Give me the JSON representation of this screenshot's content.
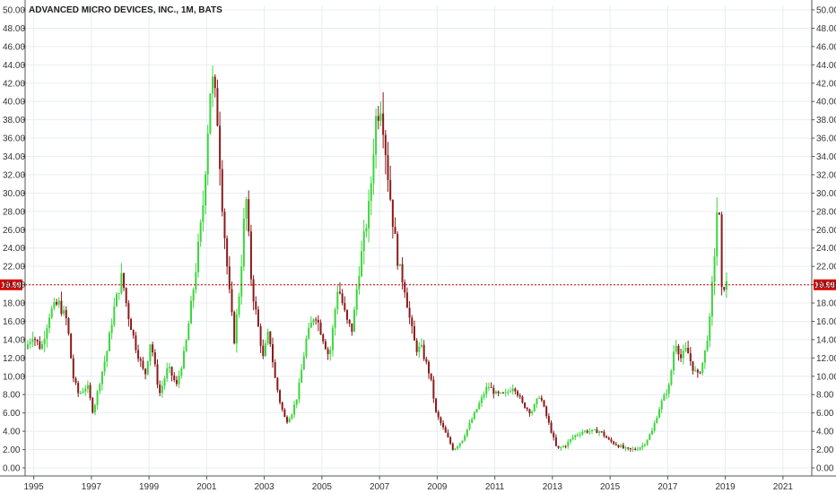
{
  "chart_data": {
    "type": "candlestick",
    "title": "ADVANCED MICRO DEVICES, INC., 1M, BATS",
    "ylim": [
      0,
      50
    ],
    "yticks": [
      0,
      2,
      4,
      6,
      8,
      10,
      12,
      14,
      16,
      18,
      20,
      22,
      24,
      26,
      28,
      30,
      32,
      34,
      36,
      38,
      40,
      42,
      44,
      46,
      48,
      50
    ],
    "ytick_labels": [
      "0.00",
      "2.00",
      "4.00",
      "6.00",
      "8.00",
      "10.00",
      "12.00",
      "14.00",
      "16.00",
      "18.00",
      "20.00",
      "22.00",
      "24.00",
      "26.00",
      "28.00",
      "30.00",
      "32.00",
      "34.00",
      "36.00",
      "38.00",
      "40.00",
      "42.00",
      "44.00",
      "46.00",
      "48.00",
      "50.00"
    ],
    "xlim": [
      1994.7,
      2022.0
    ],
    "xticks": [
      1995,
      1997,
      1999,
      2001,
      2003,
      2005,
      2007,
      2009,
      2011,
      2013,
      2015,
      2017,
      2019,
      2021
    ],
    "xtick_labels": [
      "1995",
      "1997",
      "1999",
      "2001",
      "2003",
      "2005",
      "2007",
      "2009",
      "2011",
      "2013",
      "2015",
      "2017",
      "2019",
      "2021"
    ],
    "grid": true,
    "last_price": 19.99,
    "last_price_label": "19.99",
    "up_color": "#3cd63c",
    "down_color": "#8b1a1a",
    "price_line_color": "#d40000",
    "price_path": [
      [
        1994.75,
        13.0
      ],
      [
        1995.0,
        14.5
      ],
      [
        1995.3,
        13.0
      ],
      [
        1995.6,
        17.0
      ],
      [
        1995.9,
        18.0
      ],
      [
        1996.2,
        16.0
      ],
      [
        1996.4,
        10.0
      ],
      [
        1996.6,
        8.0
      ],
      [
        1996.9,
        9.0
      ],
      [
        1997.1,
        6.0
      ],
      [
        1997.3,
        9.0
      ],
      [
        1997.6,
        13.0
      ],
      [
        1997.8,
        17.0
      ],
      [
        1998.1,
        21.0
      ],
      [
        1998.3,
        17.0
      ],
      [
        1998.6,
        13.0
      ],
      [
        1998.9,
        10.0
      ],
      [
        1999.1,
        14.0
      ],
      [
        1999.4,
        8.0
      ],
      [
        1999.7,
        11.0
      ],
      [
        2000.0,
        9.0
      ],
      [
        2000.3,
        13.0
      ],
      [
        2000.6,
        20.0
      ],
      [
        2000.9,
        28.0
      ],
      [
        2001.2,
        43.0
      ],
      [
        2001.4,
        39.0
      ],
      [
        2001.6,
        28.0
      ],
      [
        2001.8,
        20.0
      ],
      [
        2002.0,
        14.0
      ],
      [
        2002.2,
        20.0
      ],
      [
        2002.4,
        30.0
      ],
      [
        2002.6,
        20.0
      ],
      [
        2002.8,
        16.0
      ],
      [
        2003.0,
        12.0
      ],
      [
        2003.2,
        15.0
      ],
      [
        2003.4,
        10.0
      ],
      [
        2003.6,
        7.0
      ],
      [
        2003.8,
        5.0
      ],
      [
        2004.0,
        6.0
      ],
      [
        2004.2,
        8.0
      ],
      [
        2004.5,
        14.0
      ],
      [
        2004.8,
        17.0
      ],
      [
        2005.0,
        15.0
      ],
      [
        2005.3,
        12.0
      ],
      [
        2005.6,
        20.0
      ],
      [
        2005.9,
        16.0
      ],
      [
        2006.1,
        15.0
      ],
      [
        2006.3,
        21.0
      ],
      [
        2006.5,
        25.0
      ],
      [
        2006.7,
        29.0
      ],
      [
        2006.9,
        38.0
      ],
      [
        2007.1,
        40.0
      ],
      [
        2007.3,
        33.0
      ],
      [
        2007.5,
        27.0
      ],
      [
        2007.7,
        22.0
      ],
      [
        2007.9,
        20.0
      ],
      [
        2008.1,
        16.0
      ],
      [
        2008.3,
        13.0
      ],
      [
        2008.5,
        13.0
      ],
      [
        2008.8,
        10.0
      ],
      [
        2009.0,
        6.0
      ],
      [
        2009.3,
        4.0
      ],
      [
        2009.6,
        2.0
      ],
      [
        2009.9,
        3.0
      ],
      [
        2010.2,
        5.0
      ],
      [
        2010.5,
        7.0
      ],
      [
        2010.8,
        9.0
      ],
      [
        2011.1,
        8.0
      ],
      [
        2011.4,
        8.0
      ],
      [
        2011.7,
        9.0
      ],
      [
        2012.0,
        7.0
      ],
      [
        2012.3,
        6.0
      ],
      [
        2012.6,
        8.0
      ],
      [
        2012.9,
        5.0
      ],
      [
        2013.2,
        2.0
      ],
      [
        2013.5,
        2.5
      ],
      [
        2013.8,
        3.5
      ],
      [
        2014.1,
        4.0
      ],
      [
        2014.4,
        4.0
      ],
      [
        2014.7,
        4.0
      ],
      [
        2015.0,
        3.0
      ],
      [
        2015.3,
        2.5
      ],
      [
        2015.6,
        2.0
      ],
      [
        2015.9,
        2.0
      ],
      [
        2016.2,
        2.5
      ],
      [
        2016.5,
        4.0
      ],
      [
        2016.8,
        7.0
      ],
      [
        2017.1,
        9.0
      ],
      [
        2017.3,
        14.0
      ],
      [
        2017.5,
        12.0
      ],
      [
        2017.7,
        13.0
      ],
      [
        2017.9,
        11.0
      ],
      [
        2018.1,
        10.0
      ],
      [
        2018.3,
        12.0
      ],
      [
        2018.5,
        16.0
      ],
      [
        2018.7,
        25.0
      ],
      [
        2018.8,
        31.0
      ],
      [
        2018.9,
        19.0
      ],
      [
        2019.0,
        20.0
      ]
    ]
  }
}
